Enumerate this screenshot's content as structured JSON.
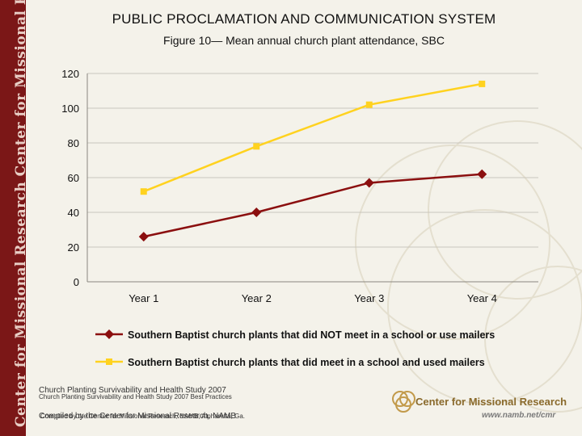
{
  "header": {
    "title": "PUBLIC PROCLAMATION AND COMMUNICATION SYSTEM"
  },
  "sidebar": {
    "text": "Center for Missional Research Center for Missional Research Center for Missional Re"
  },
  "chart_data": {
    "type": "line",
    "title": "Figure 10— Mean annual church plant attendance, SBC",
    "categories": [
      "Year 1",
      "Year 2",
      "Year 3",
      "Year 4"
    ],
    "ylim": [
      0,
      120
    ],
    "yticks": [
      0,
      20,
      40,
      60,
      80,
      100,
      120
    ],
    "grid": true,
    "legend_position": "bottom",
    "series": [
      {
        "name": "Southern Baptist church plants that did NOT meet in a school or use mailers",
        "values": [
          26,
          40,
          57,
          62
        ],
        "color": "#8b0f0f",
        "marker": "diamond"
      },
      {
        "name": "Southern Baptist church plants that did meet in a school and used mailers",
        "values": [
          52,
          78,
          102,
          114
        ],
        "color": "#ffd21f",
        "marker": "square"
      }
    ]
  },
  "footer": {
    "source_1": "Church Planting Survivability and Health Study 2007",
    "source_2": "Church Planting Survivability and Health Study 2007 Best Practices",
    "compiled_1": "Compiled by the Center for Missional Research, NAMB",
    "compiled_2": "Compiled by the Center for Missional Research, NAMB, Alpharetta, Ga.",
    "logo_text": "Center for Missional Research",
    "logo_url": "www.namb.net/cmr"
  }
}
